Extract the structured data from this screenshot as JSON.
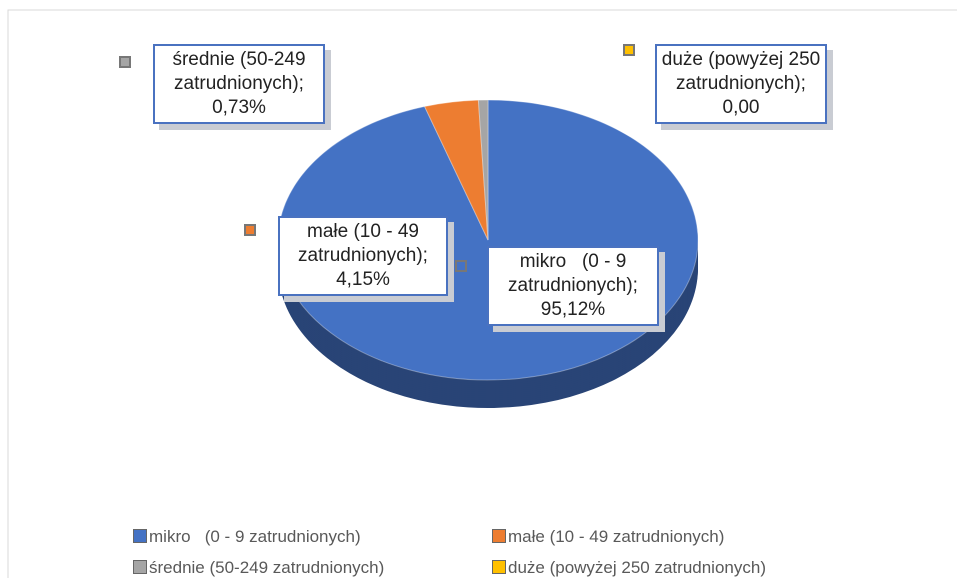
{
  "chart_data": {
    "type": "pie",
    "categories": [
      "mikro   (0 - 9 zatrudnionych)",
      "małe (10 - 49 zatrudnionych)",
      "średnie (50-249 zatrudnionych)",
      "duże (powyżej 250 zatrudnionych)"
    ],
    "values": [
      95.12,
      4.15,
      0.73,
      0.0
    ],
    "value_labels": [
      "95,12%",
      "4,15%",
      "0,73%",
      "0,00"
    ],
    "label_names": [
      "mikro   (0 - 9 zatrudnionych);",
      "małe (10 - 49 zatrudnionych);",
      "średnie (50-249 zatrudnionych);",
      "duże (powyżej 250 zatrudnionych);"
    ],
    "colors": [
      "#4472c4",
      "#ed7d31",
      "#a5a5a5",
      "#ffc000"
    ],
    "legend": "bottom"
  }
}
